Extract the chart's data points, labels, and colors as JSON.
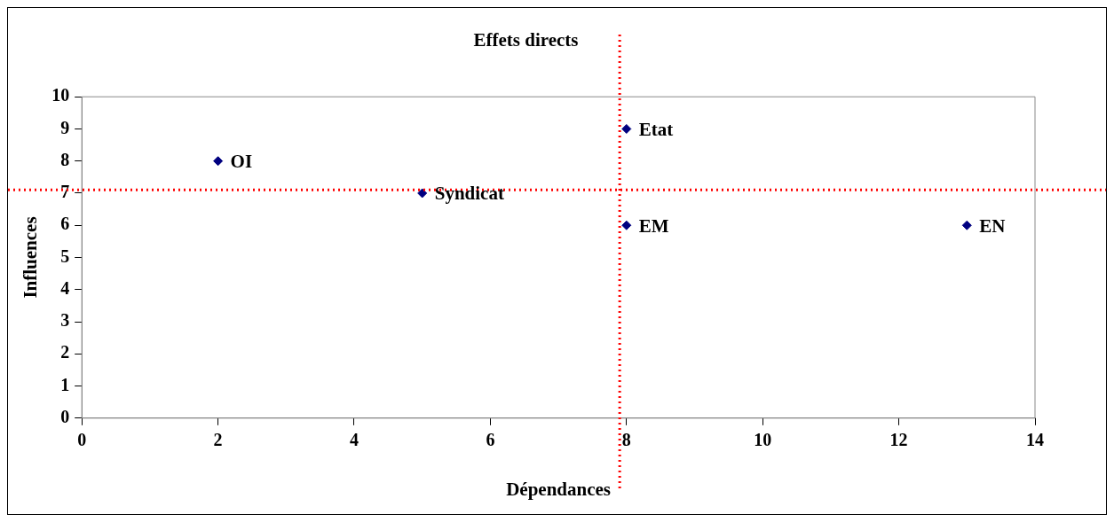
{
  "chart_data": {
    "type": "scatter",
    "title": "Effets directs",
    "xlabel": "Dépendances",
    "ylabel": "Influences",
    "x": [
      2,
      5,
      8,
      8,
      13
    ],
    "series": [
      {
        "color": "#000080",
        "values": [
          8,
          7,
          9,
          6,
          6
        ]
      }
    ],
    "annotations": [
      {
        "text": "OI",
        "x": 2,
        "y": 8
      },
      {
        "text": "Syndicat",
        "x": 5,
        "y": 7
      },
      {
        "text": "Etat",
        "x": 8,
        "y": 9
      },
      {
        "text": "EM",
        "x": 8,
        "y": 6
      },
      {
        "text": "EN",
        "x": 13,
        "y": 6
      }
    ],
    "ref_lines": [
      {
        "axis": "x",
        "value": 7.9,
        "color": "#ff0000",
        "line_style": "dotted"
      },
      {
        "axis": "y",
        "value": 7.1,
        "color": "#ff0000",
        "line_style": "dotted"
      }
    ],
    "xlim": [
      0,
      14
    ],
    "xticks": [
      0,
      2,
      4,
      6,
      8,
      10,
      12,
      14
    ],
    "ylim": [
      0,
      10
    ],
    "yticks": [
      0,
      1,
      2,
      3,
      4,
      5,
      6,
      7,
      8,
      9,
      10
    ],
    "marker": "diamond",
    "grid": false,
    "legend": false
  }
}
